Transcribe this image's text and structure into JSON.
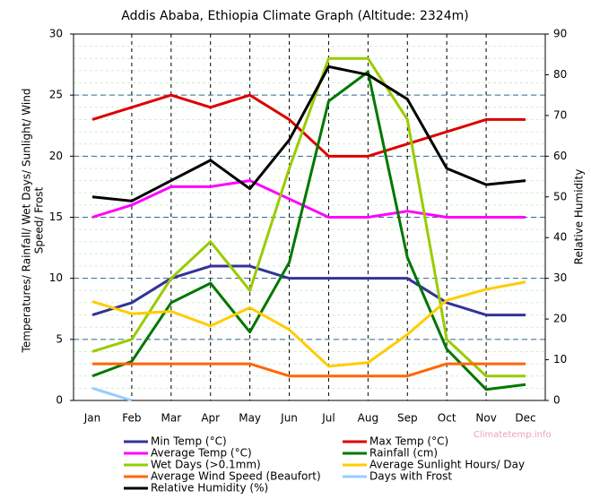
{
  "chart_data": {
    "type": "line",
    "title": "Addis Ababa, Ethiopia Climate Graph (Altitude: 2324m)",
    "ylabel": [
      "Temperatures/ Rainfall/ Wet Days/ Sunlight/ Wind",
      "Speed/ Frost"
    ],
    "y2label": "Relative Humidity",
    "watermark": "Climatetemp.info",
    "categories": [
      "Jan",
      "Feb",
      "Mar",
      "Apr",
      "May",
      "Jun",
      "Jul",
      "Aug",
      "Sep",
      "Oct",
      "Nov",
      "Dec"
    ],
    "ylim": [
      0,
      30
    ],
    "yticks": [
      0,
      5,
      10,
      15,
      20,
      25,
      30
    ],
    "y2lim": [
      0,
      90
    ],
    "y2ticks": [
      0,
      10,
      20,
      30,
      40,
      50,
      60,
      70,
      80,
      90
    ],
    "grid": true,
    "series": [
      {
        "name": "Min Temp (°C)",
        "color": "#333399",
        "values": [
          7,
          8,
          10,
          11,
          11,
          10,
          10,
          10,
          10,
          8,
          7,
          7
        ]
      },
      {
        "name": "Max Temp (°C)",
        "color": "#dd0000",
        "values": [
          23,
          24,
          25,
          24,
          25,
          23,
          20,
          20,
          21,
          22,
          23,
          23
        ]
      },
      {
        "name": "Average Temp (°C)",
        "color": "#ff00ff",
        "values": [
          15,
          16,
          17.5,
          17.5,
          18,
          16.5,
          15,
          15,
          15.5,
          15,
          15,
          15
        ]
      },
      {
        "name": "Rainfall (cm)",
        "color": "#007700",
        "values": [
          2,
          3.2,
          8,
          9.6,
          5.6,
          11.3,
          24.5,
          26.9,
          11.7,
          4.2,
          0.9,
          1.3
        ]
      },
      {
        "name": "Wet Days (>0.1mm)",
        "color": "#99cc00",
        "values": [
          4,
          5,
          10,
          13,
          9,
          19,
          28,
          28,
          23,
          5,
          2,
          2
        ]
      },
      {
        "name": "Average Sunlight Hours/ Day",
        "color": "#ffcc00",
        "values": [
          8.1,
          7.1,
          7.3,
          6.1,
          7.6,
          5.8,
          2.8,
          3.1,
          5.4,
          8.2,
          9.1,
          9.7
        ]
      },
      {
        "name": "Average Wind Speed (Beaufort)",
        "color": "#ff6600",
        "values": [
          3,
          3,
          3,
          3,
          3,
          2,
          2,
          2,
          2,
          3,
          3,
          3
        ]
      },
      {
        "name": "Days with Frost",
        "color": "#99ccff",
        "values": [
          1,
          0,
          null,
          null,
          null,
          null,
          null,
          null,
          null,
          null,
          null,
          null
        ]
      },
      {
        "name": "Relative Humidity (%)",
        "color": "#000000",
        "axis": "y2",
        "values": [
          50,
          49,
          54,
          59,
          52,
          64,
          82,
          80,
          74,
          57,
          53,
          54
        ]
      }
    ]
  }
}
